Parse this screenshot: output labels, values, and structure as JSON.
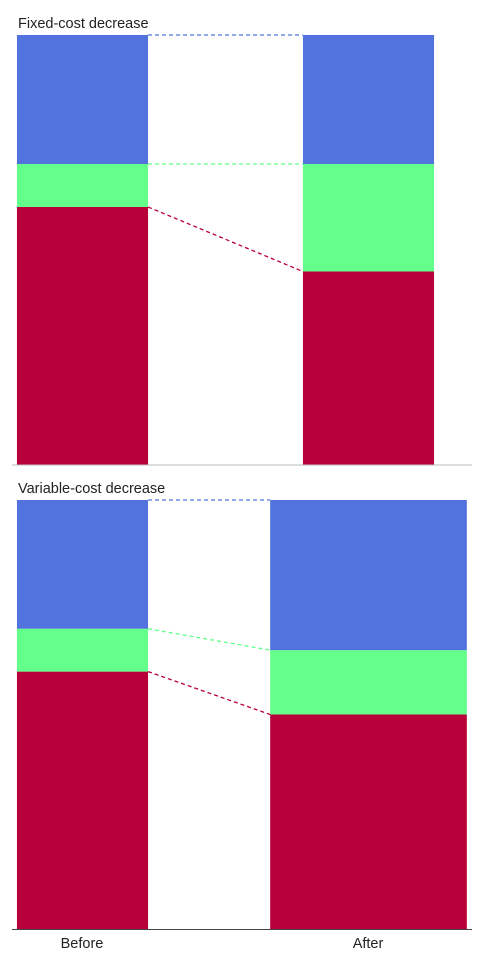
{
  "colors": {
    "blue": "#5273DE",
    "green": "#64FF8A",
    "red": "#B8003A",
    "axis": "#444444",
    "divider": "#BBBBBB",
    "text": "#222222"
  },
  "chart_data": [
    {
      "type": "bar",
      "stacked": true,
      "title": "Fixed-cost decrease",
      "categories": [
        "Before",
        "After"
      ],
      "bar_widths": [
        0.3,
        0.3
      ],
      "connectors": "dashed",
      "ylim": [
        0,
        100
      ],
      "grid": false,
      "series": [
        {
          "values": [
            60,
            45
          ],
          "color": "#B8003A"
        },
        {
          "values": [
            10,
            25
          ],
          "color": "#64FF8A"
        },
        {
          "values": [
            30,
            30
          ],
          "color": "#5273DE"
        }
      ]
    },
    {
      "type": "bar",
      "stacked": true,
      "title": "Variable-cost decrease",
      "categories": [
        "Before",
        "After"
      ],
      "bar_widths": [
        0.3,
        0.45
      ],
      "connectors": "dashed",
      "ylim": [
        0,
        100
      ],
      "grid": false,
      "series": [
        {
          "values": [
            60,
            50
          ],
          "color": "#B8003A"
        },
        {
          "values": [
            10,
            15
          ],
          "color": "#64FF8A"
        },
        {
          "values": [
            30,
            35
          ],
          "color": "#5273DE"
        }
      ]
    }
  ],
  "x_axis": {
    "tick_labels": [
      "Before",
      "After"
    ]
  }
}
